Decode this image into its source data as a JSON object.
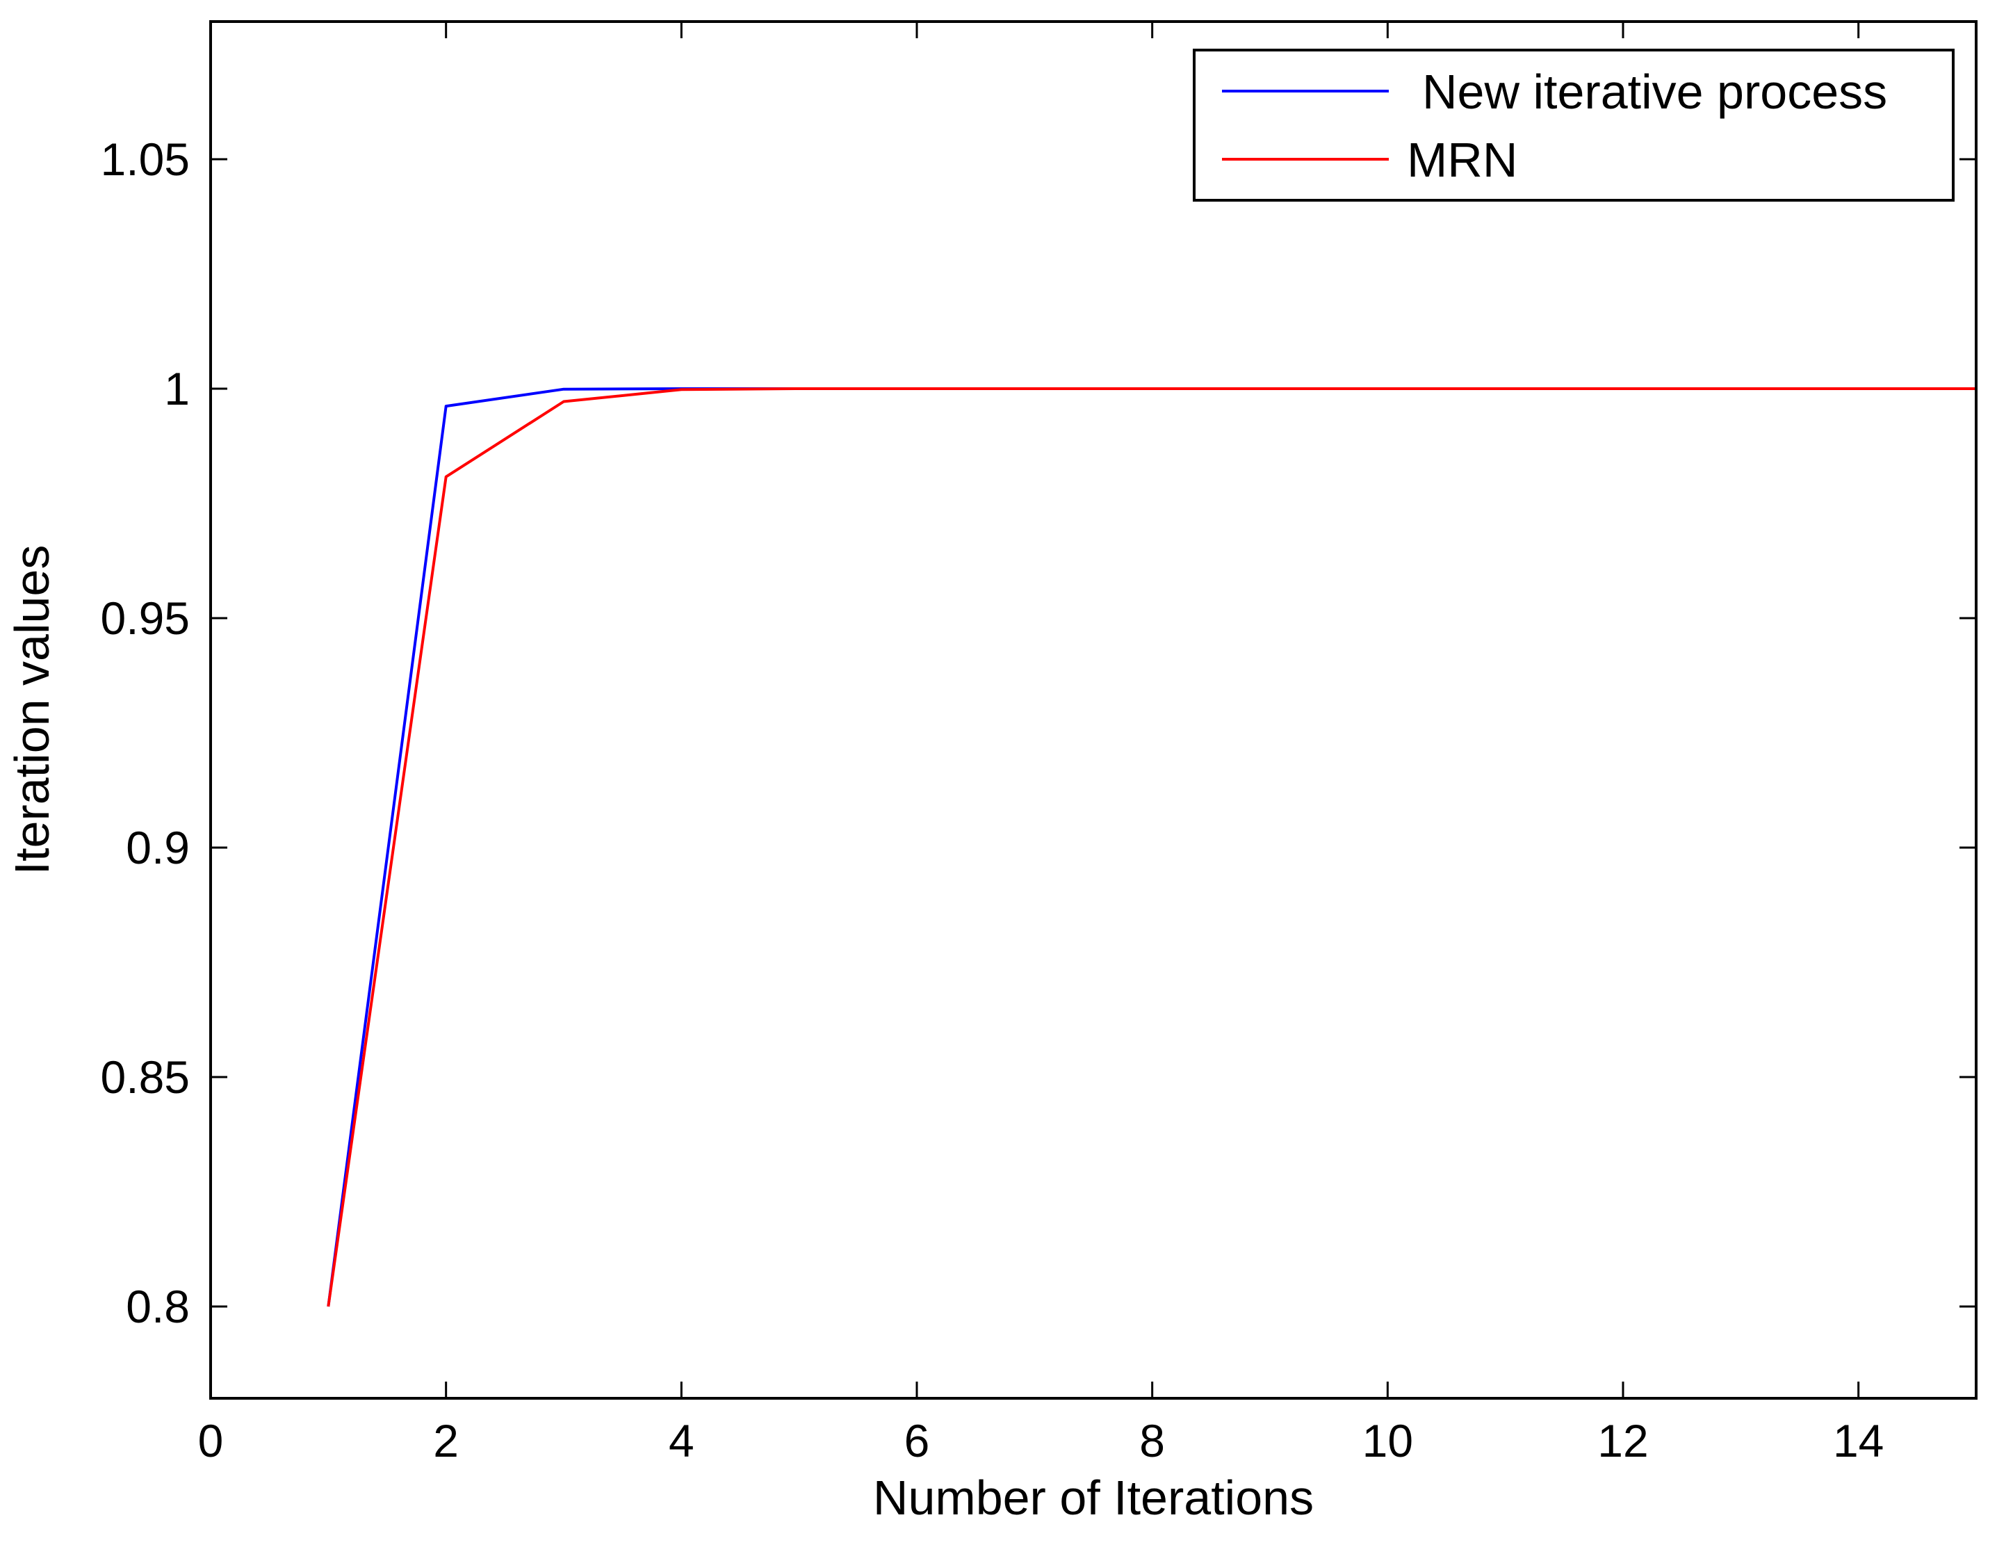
{
  "chart_data": {
    "type": "line",
    "title": "",
    "xlabel": "Number of Iterations",
    "ylabel": "Iteration values",
    "xlim": [
      0,
      15
    ],
    "ylim": [
      0.78,
      1.08
    ],
    "xticks": [
      0,
      2,
      4,
      6,
      8,
      10,
      12,
      14
    ],
    "xtick_labels": [
      "0",
      "2",
      "4",
      "6",
      "8",
      "10",
      "12",
      "14"
    ],
    "yticks": [
      0.8,
      0.85,
      0.9,
      0.95,
      1,
      1.05
    ],
    "ytick_labels": [
      "0.8",
      "0.85",
      "0.9",
      "0.95",
      "1",
      "1.05"
    ],
    "grid": false,
    "legend_position": "top-right",
    "series": [
      {
        "name": "New iterative process",
        "color": "#0000ff",
        "x": [
          1,
          2,
          3,
          4,
          5,
          6,
          7,
          8,
          9,
          10,
          11,
          12,
          13,
          14,
          15
        ],
        "values": [
          0.8,
          0.9962,
          0.9999,
          1.0,
          1.0,
          1.0,
          1.0,
          1.0,
          1.0,
          1.0,
          1.0,
          1.0,
          1.0,
          1.0,
          1.0
        ]
      },
      {
        "name": "MRN",
        "color": "#ff0000",
        "x": [
          1,
          2,
          3,
          4,
          5,
          6,
          7,
          8,
          9,
          10,
          11,
          12,
          13,
          14,
          15
        ],
        "values": [
          0.8,
          0.9808,
          0.9972,
          0.9998,
          1.0,
          1.0,
          1.0,
          1.0,
          1.0,
          1.0,
          1.0,
          1.0,
          1.0,
          1.0,
          1.0
        ]
      }
    ]
  }
}
